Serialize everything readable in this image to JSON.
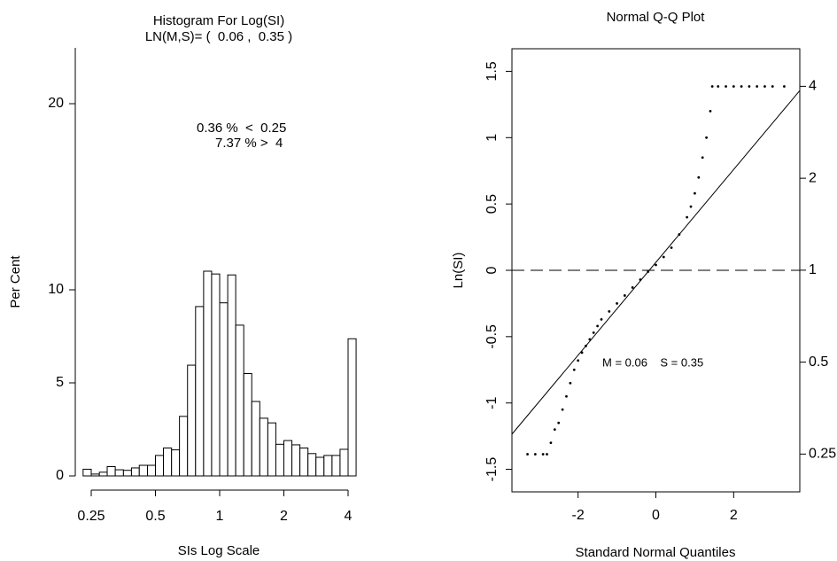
{
  "chart_data": [
    {
      "type": "histogram",
      "title": "Histogram For Log(SI)",
      "subtitle": "LN(M,S)= (  0.06 ,  0.35 )",
      "x_label": "SIs Log Scale",
      "y_label": "Per Cent",
      "annotations": [
        "0.36 %  <  0.25",
        "7.37 % >  4"
      ],
      "bins": [
        0.229,
        0.25,
        0.273,
        0.297,
        0.324,
        0.354,
        0.386,
        0.42,
        0.459,
        0.5,
        0.545,
        0.595,
        0.648,
        0.707,
        0.771,
        0.841,
        0.917,
        1,
        1.091,
        1.189,
        1.297,
        1.414,
        1.542,
        1.682,
        1.834,
        2,
        2.181,
        2.378,
        2.594,
        2.828,
        3.084,
        3.364,
        3.668,
        4,
        4.362
      ],
      "values": [
        0.36,
        0.1,
        0.2,
        0.5,
        0.33,
        0.3,
        0.43,
        0.57,
        0.57,
        1.1,
        1.5,
        1.4,
        3.2,
        5.95,
        9.1,
        11.0,
        10.85,
        9.3,
        10.8,
        8.1,
        5.5,
        4.0,
        3.1,
        2.85,
        1.7,
        1.9,
        1.67,
        1.5,
        1.2,
        1.0,
        1.1,
        1.1,
        1.43,
        7.37
      ],
      "x_log": true,
      "xlim": [
        0.25,
        4
      ],
      "xticks": [
        0.25,
        0.5,
        1,
        2,
        4
      ],
      "ylim": [
        0,
        23
      ],
      "yticks": [
        0,
        5,
        10,
        20
      ],
      "color": "#ffffff"
    },
    {
      "type": "scatter",
      "title": "Normal Q-Q Plot",
      "x_label": "Standard Normal Quantiles",
      "y_label": "Ln(SI)",
      "annotation": "M = 0.06    S = 0.35",
      "x": [
        -3.3,
        -3.1,
        -2.9,
        -2.8,
        -2.7,
        -2.6,
        -2.5,
        -2.4,
        -2.3,
        -2.2,
        -2.1,
        -2.0,
        -1.9,
        -1.8,
        -1.7,
        -1.6,
        -1.5,
        -1.4,
        -1.2,
        -1.0,
        -0.8,
        -0.6,
        -0.4,
        -0.2,
        0,
        0.2,
        0.4,
        0.6,
        0.8,
        0.9,
        1.0,
        1.1,
        1.2,
        1.3,
        1.4,
        1.45,
        1.6,
        1.8,
        2.0,
        2.2,
        2.4,
        2.6,
        2.8,
        3.0,
        3.3
      ],
      "values": [
        -1.386,
        -1.386,
        -1.386,
        -1.386,
        -1.3,
        -1.2,
        -1.15,
        -1.05,
        -0.95,
        -0.85,
        -0.75,
        -0.68,
        -0.62,
        -0.57,
        -0.52,
        -0.47,
        -0.42,
        -0.37,
        -0.31,
        -0.25,
        -0.19,
        -0.13,
        -0.07,
        -0.01,
        0.04,
        0.1,
        0.17,
        0.27,
        0.4,
        0.48,
        0.58,
        0.7,
        0.85,
        1.0,
        1.2,
        1.386,
        1.386,
        1.386,
        1.386,
        1.386,
        1.386,
        1.386,
        1.386,
        1.386,
        1.386
      ],
      "reference_line": {
        "intercept": 0.06,
        "slope": 0.35
      },
      "hline": 0,
      "xlim": [
        -3.7,
        3.7
      ],
      "xticks": [
        -2,
        0,
        2
      ],
      "ylim": [
        -1.67,
        1.67
      ],
      "yticks": [
        -1.5,
        -1.0,
        -0.5,
        0.0,
        0.5,
        1.0,
        1.5
      ],
      "y2_log": true,
      "y2lim": [
        0.188,
        5.31
      ],
      "y2ticks": [
        0.25,
        0.5,
        1,
        2,
        4
      ],
      "color": "#000000"
    }
  ]
}
